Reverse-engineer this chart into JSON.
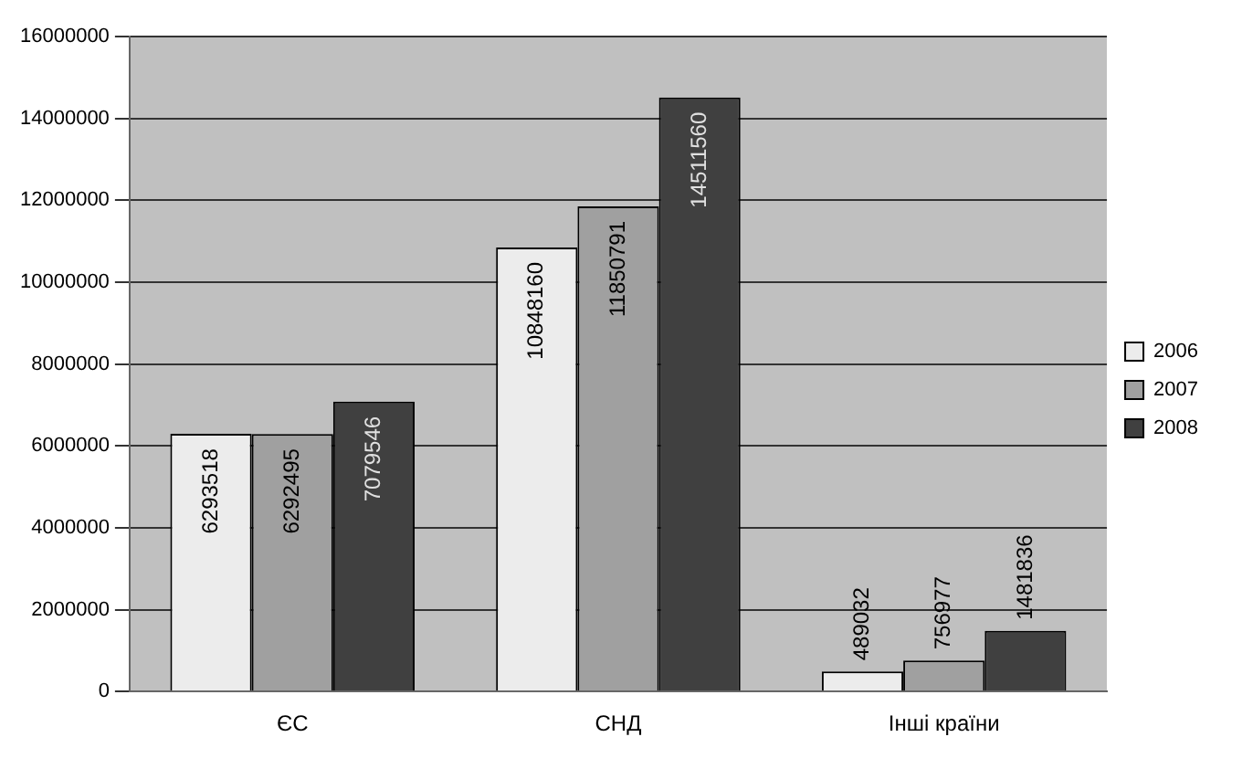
{
  "chart_data": {
    "type": "bar",
    "categories": [
      "ЄС",
      "СНД",
      "Інші країни"
    ],
    "series": [
      {
        "name": "2006",
        "color": "#ececec",
        "values": [
          6293518,
          10848160,
          489032
        ]
      },
      {
        "name": "2007",
        "color": "#a0a0a0",
        "values": [
          6292495,
          11850791,
          756977
        ]
      },
      {
        "name": "2008",
        "color": "#404040",
        "values": [
          7079546,
          14511560,
          1481836
        ]
      }
    ],
    "ylim": [
      0,
      16000000
    ],
    "yticks": [
      0,
      2000000,
      4000000,
      6000000,
      8000000,
      10000000,
      12000000,
      14000000,
      16000000
    ],
    "grid": "y",
    "legend": "right",
    "data_labels": true
  }
}
